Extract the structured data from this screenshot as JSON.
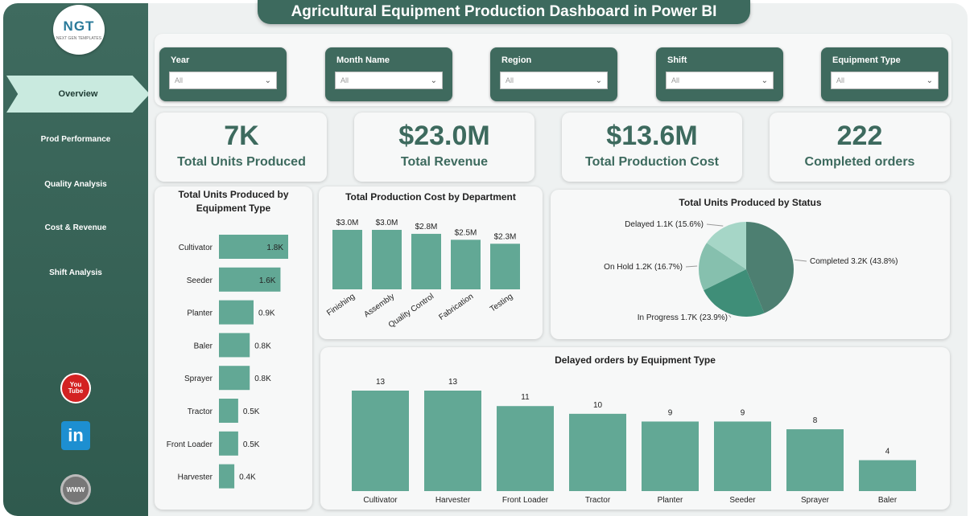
{
  "app": {
    "title": "Agricultural Equipment Production Dashboard in Power BI",
    "logo_mark": "NGT",
    "logo_sub": "NEXT GEN TEMPLATES"
  },
  "nav": {
    "items": [
      {
        "label": "Overview",
        "active": true
      },
      {
        "label": "Prod Performance",
        "active": false
      },
      {
        "label": "Quality Analysis",
        "active": false
      },
      {
        "label": "Cost & Revenue",
        "active": false
      },
      {
        "label": "Shift Analysis",
        "active": false
      }
    ]
  },
  "social": {
    "youtube_label": "You\nTube",
    "linkedin_label": "in",
    "web_label": "WWW"
  },
  "filters": [
    {
      "label": "Year",
      "value": "All"
    },
    {
      "label": "Month Name",
      "value": "All"
    },
    {
      "label": "Region",
      "value": "All"
    },
    {
      "label": "Shift",
      "value": "All"
    },
    {
      "label": "Equipment Type",
      "value": "All"
    }
  ],
  "kpis": [
    {
      "value": "7K",
      "caption": "Total Units Produced"
    },
    {
      "value": "$23.0M",
      "caption": "Total Revenue"
    },
    {
      "value": "$13.6M",
      "caption": "Total Production Cost"
    },
    {
      "value": "222",
      "caption": "Completed orders"
    }
  ],
  "colors": {
    "accent": "#3d6a5e",
    "bar": "#62a895",
    "pie": [
      "#4d7f71",
      "#3f8e78",
      "#86c0ae",
      "#a6d6c7"
    ]
  },
  "chart_data": [
    {
      "id": "units_by_equipment",
      "type": "bar",
      "orientation": "horizontal",
      "title": "Total Units Produced by Equipment Type",
      "categories": [
        "Cultivator",
        "Seeder",
        "Planter",
        "Baler",
        "Sprayer",
        "Tractor",
        "Front Loader",
        "Harvester"
      ],
      "values": [
        1.8,
        1.6,
        0.9,
        0.8,
        0.8,
        0.5,
        0.5,
        0.4
      ],
      "labels": [
        "1.8K",
        "1.6K",
        "0.9K",
        "0.8K",
        "0.8K",
        "0.5K",
        "0.5K",
        "0.4K"
      ]
    },
    {
      "id": "cost_by_department",
      "type": "bar",
      "title": "Total Production Cost by Department",
      "categories": [
        "Finishing",
        "Assembly",
        "Quality Control",
        "Fabrication",
        "Testing"
      ],
      "values": [
        3.0,
        3.0,
        2.8,
        2.5,
        2.3
      ],
      "labels": [
        "$3.0M",
        "$3.0M",
        "$2.8M",
        "$2.5M",
        "$2.3M"
      ]
    },
    {
      "id": "units_by_status",
      "type": "pie",
      "title": "Total Units Produced by Status",
      "categories": [
        "Completed",
        "In Progress",
        "On Hold",
        "Delayed"
      ],
      "values": [
        43.8,
        23.9,
        16.7,
        15.6
      ],
      "labels": [
        "Completed 3.2K (43.8%)",
        "In Progress 1.7K (23.9%)",
        "On Hold 1.2K (16.7%)",
        "Delayed 1.1K (15.6%)"
      ]
    },
    {
      "id": "delayed_by_equipment",
      "type": "bar",
      "title": "Delayed orders by Equipment Type",
      "categories": [
        "Cultivator",
        "Harvester",
        "Front Loader",
        "Tractor",
        "Planter",
        "Seeder",
        "Sprayer",
        "Baler"
      ],
      "values": [
        13,
        13,
        11,
        10,
        9,
        9,
        8,
        4
      ],
      "labels": [
        "13",
        "13",
        "11",
        "10",
        "9",
        "9",
        "8",
        "4"
      ]
    }
  ]
}
